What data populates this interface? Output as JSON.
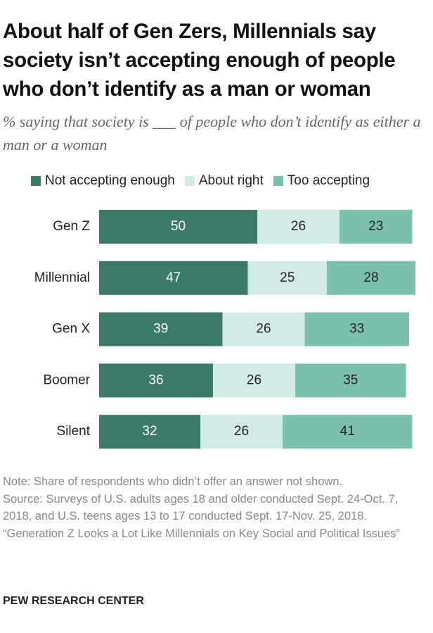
{
  "chart_data": {
    "type": "stacked-bar",
    "title": "About half of Gen Zers, Millennials say society isn’t accepting enough of people who don’t identify as a man or woman",
    "subtitle": "% saying that society is ___ of people who don’t identify as either a man or a woman",
    "categories": [
      "Gen Z",
      "Millennial",
      "Gen X",
      "Boomer",
      "Silent"
    ],
    "series": [
      {
        "name": "Not accepting enough",
        "color": "#3b7a68",
        "label_color": "#ffffff",
        "values": [
          50,
          47,
          39,
          36,
          32
        ]
      },
      {
        "name": "About right",
        "color": "#d3ebe5",
        "label_color": "#222222",
        "values": [
          26,
          25,
          26,
          26,
          26
        ]
      },
      {
        "name": "Too accepting",
        "color": "#7cc1ae",
        "label_color": "#222222",
        "values": [
          23,
          28,
          33,
          35,
          41
        ]
      }
    ],
    "note": "Note: Share of respondents who didn’t offer an answer not shown.",
    "source": "Source: Surveys of U.S. adults ages 18 and older conducted Sept. 24-Oct. 7, 2018, and U.S. teens ages 13 to 17 conducted Sept. 17-Nov. 25, 2018.",
    "citation": "“Generation Z Looks a Lot Like Millennials on Key Social and Political Issues”",
    "footer": "PEW RESEARCH CENTER"
  }
}
